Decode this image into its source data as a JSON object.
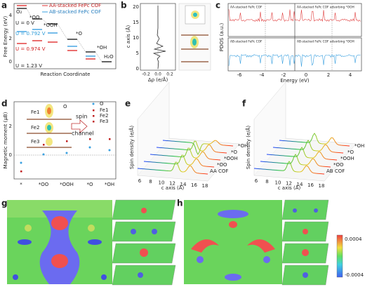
{
  "panels": {
    "a": {
      "label": "a",
      "legend": [
        "AA-stacked FePc COF",
        "AB-stacked FePc COF"
      ],
      "y_axis": "Free Energy (eV)",
      "y_ticks": [
        "4",
        "2",
        "0"
      ],
      "x_axis": "Reaction Coordinate",
      "species": [
        "O₂",
        "*OO",
        "*OOH",
        "*O",
        "*OH",
        "H₂O"
      ],
      "potentials": [
        "U = 0 V",
        "U = 0.792 V",
        "U = 0.974 V",
        "U = 1.23 V"
      ]
    },
    "b": {
      "label": "b",
      "y_axis": "c axis (Å)",
      "y_ticks": [
        "20",
        "15",
        "10",
        "5",
        "0"
      ],
      "x_axis": "Δρ (e/Å)",
      "x_ticks": [
        "-0.2",
        "0.0",
        "0.2"
      ]
    },
    "c": {
      "label": "c",
      "titles": [
        "AA-stacked FePc COF",
        "AA-stacked FePc COF adsorbing *OOH",
        "AB-stacked FePc COF",
        "AB-stacked FePc COF adsorbing *OOH"
      ],
      "y_axis": "PDOS (a.u.)",
      "x_axis": "Energy (eV)",
      "x_ticks": [
        "-6",
        "-4",
        "-2",
        "0",
        "2",
        "4"
      ]
    },
    "d": {
      "label": "d",
      "y_axis": "Magnetic moment (μB)",
      "y_ticks": [
        "2",
        "0"
      ],
      "categories": [
        "*",
        "*OO",
        "*OOH",
        "*O",
        "*OH"
      ],
      "legend": [
        "O",
        "Fe1",
        "Fe2",
        "Fe3"
      ],
      "inset": [
        "Fe1",
        "Fe2",
        "Fe3",
        "O",
        "spin",
        "channel"
      ]
    },
    "e": {
      "label": "e",
      "y_axis": "Spin density (e/Å)",
      "x_axis": "c axis (Å)",
      "x_ticks": [
        "6",
        "8",
        "10",
        "12",
        "14",
        "16",
        "18"
      ],
      "depth": [
        "*OH",
        "*O",
        "*OOH",
        "*OO",
        "AA COF"
      ]
    },
    "f": {
      "label": "f",
      "y_axis": "Spin density (e/Å)",
      "x_axis": "c axis (Å)",
      "x_ticks": [
        "6",
        "8",
        "10",
        "12",
        "14",
        "16",
        "18"
      ],
      "depth": [
        "*OH",
        "*O",
        "*OOH",
        "*OO",
        "AB COF"
      ]
    },
    "g": {
      "label": "g"
    },
    "h": {
      "label": "h"
    },
    "colorbar": {
      "max": "0.0004",
      "min": "-0.0004"
    }
  }
}
